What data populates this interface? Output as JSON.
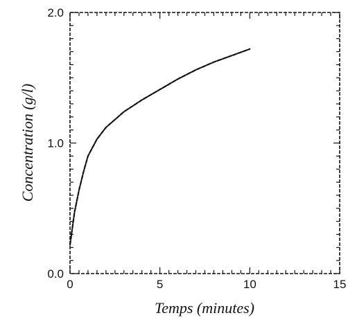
{
  "chart_data": {
    "type": "line",
    "title": "",
    "xlabel": "Temps (minutes)",
    "ylabel": "Concentration (g/l)",
    "xlim": [
      0,
      15
    ],
    "ylim": [
      0,
      2
    ],
    "x_ticks": [
      "0",
      "5",
      "10",
      "15"
    ],
    "y_ticks": [
      "0.0",
      "1.0",
      "2.0"
    ],
    "grid": false,
    "legend": "none",
    "series": [
      {
        "x": [
          0,
          0.25,
          0.5,
          0.75,
          1.0,
          1.5,
          2.0,
          3,
          4,
          5,
          6,
          7,
          8,
          9,
          10
        ],
        "y": [
          0.22,
          0.47,
          0.64,
          0.78,
          0.9,
          1.03,
          1.12,
          1.24,
          1.33,
          1.41,
          1.49,
          1.56,
          1.62,
          1.67,
          1.72
        ]
      }
    ]
  },
  "colors": {
    "line": "#111111",
    "background": "#ffffff"
  }
}
